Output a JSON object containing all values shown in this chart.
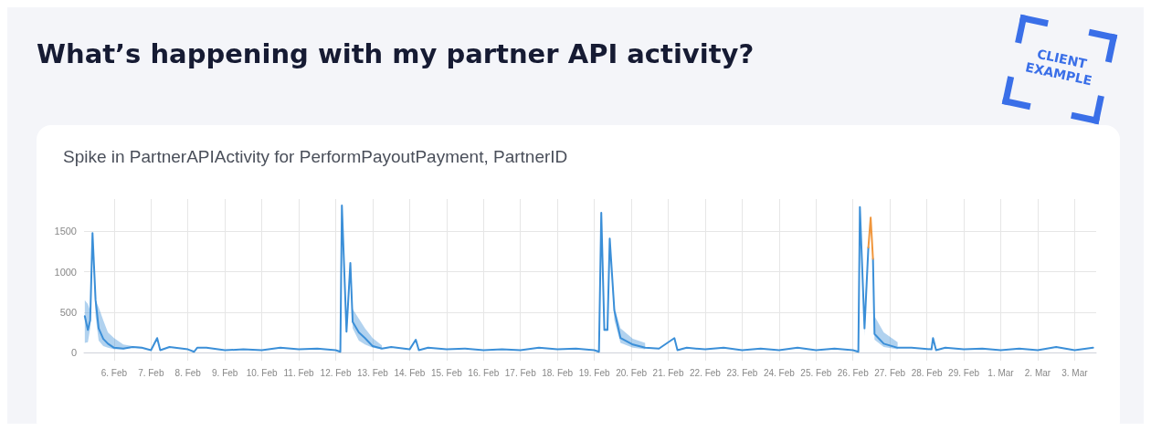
{
  "chart_data": {
    "type": "line",
    "title": "What’s happening with my partner API activity?",
    "subtitle": "Spike in PartnerAPIActivity for PerformPayoutPayment, PartnerID",
    "annotations": [
      "CLIENT EXAMPLE"
    ],
    "x": [
      "--02-05T05:00",
      "--02-05T07:00",
      "--02-05T08:30",
      "--02-05T10:00",
      "--02-05T12:00",
      "--02-05T14:00",
      "--02-05T17:00",
      "--02-05T20:00",
      "--02-06T00:00",
      "--02-06T06:00",
      "--02-06T12:00",
      "--02-06T18:00",
      "--02-07T00:00",
      "--02-07T04:00",
      "--02-07T06:00",
      "--02-07T12:00",
      "--02-08T00:00",
      "--02-08T04:00",
      "--02-08T06:00",
      "--02-08T12:00",
      "--02-09T00:00",
      "--02-09T12:00",
      "--02-10T00:00",
      "--02-10T12:00",
      "--02-11T00:00",
      "--02-11T12:00",
      "--02-12T00:00",
      "--02-12T03:00",
      "--02-12T04:00",
      "--02-12T07:00",
      "--02-12T09:30",
      "--02-12T11:00",
      "--02-12T15:00",
      "--02-12T19:00",
      "--02-13T00:00",
      "--02-13T06:00",
      "--02-13T12:00",
      "--02-14T00:00",
      "--02-14T04:00",
      "--02-14T06:00",
      "--02-14T12:00",
      "--02-15T00:00",
      "--02-15T12:00",
      "--02-16T00:00",
      "--02-16T12:00",
      "--02-17T00:00",
      "--02-17T12:00",
      "--02-18T00:00",
      "--02-18T12:00",
      "--02-19T00:00",
      "--02-19T03:00",
      "--02-19T04:30",
      "--02-19T06:30",
      "--02-19T08:30",
      "--02-19T10:00",
      "--02-19T13:00",
      "--02-19T17:00",
      "--02-20T01:00",
      "--02-20T09:00",
      "--02-20T18:00",
      "--02-21T04:00",
      "--02-21T06:00",
      "--02-21T12:00",
      "--02-22T00:00",
      "--02-22T12:00",
      "--02-23T00:00",
      "--02-23T12:00",
      "--02-24T00:00",
      "--02-24T12:00",
      "--02-25T00:00",
      "--02-25T12:00",
      "--02-26T00:00",
      "--02-26T03:30",
      "--02-26T04:30",
      "--02-26T07:30",
      "--02-26T10:00",
      "--02-26T11:30",
      "--02-26T13:00",
      "--02-26T14:00",
      "--02-26T20:00",
      "--02-27T05:00",
      "--02-27T14:00",
      "--02-28T03:00",
      "--02-28T04:00",
      "--02-28T06:00",
      "--02-28T12:00",
      "--02-29T00:00",
      "--02-29T12:00",
      "--03-01T00:00",
      "--03-01T12:00",
      "--03-02T00:00",
      "--03-02T12:00",
      "--03-03T00:00",
      "--03-03T12:00"
    ],
    "series": [
      {
        "color": "#3b8fd8",
        "values": [
          450,
          280,
          400,
          1480,
          650,
          300,
          170,
          110,
          60,
          50,
          70,
          60,
          30,
          180,
          30,
          70,
          40,
          10,
          60,
          60,
          30,
          40,
          30,
          60,
          40,
          50,
          30,
          10,
          1820,
          260,
          1110,
          380,
          250,
          180,
          80,
          50,
          70,
          40,
          160,
          30,
          60,
          40,
          50,
          30,
          40,
          30,
          60,
          40,
          50,
          30,
          10,
          1730,
          280,
          280,
          1410,
          520,
          180,
          100,
          60,
          50,
          180,
          30,
          60,
          40,
          60,
          30,
          50,
          30,
          60,
          30,
          50,
          30,
          10,
          1800,
          300,
          1300,
          null,
          1160,
          230,
          110,
          60,
          60,
          40,
          180,
          30,
          60,
          40,
          50,
          30,
          50,
          30,
          70,
          30,
          60
        ],
        "lower": [
          120,
          130,
          300,
          1450,
          450,
          150,
          80,
          60,
          40,
          40,
          60,
          50,
          null,
          null,
          null,
          null,
          null,
          null,
          null,
          null,
          null,
          null,
          null,
          null,
          null,
          null,
          null,
          null,
          null,
          260,
          1080,
          300,
          150,
          100,
          60,
          40,
          null,
          null,
          null,
          null,
          null,
          null,
          null,
          null,
          null,
          null,
          null,
          null,
          null,
          null,
          null,
          null,
          270,
          270,
          1380,
          400,
          120,
          60,
          40,
          null,
          null,
          null,
          null,
          null,
          null,
          null,
          null,
          null,
          null,
          null,
          null,
          null,
          null,
          null,
          200,
          1280,
          null,
          1140,
          160,
          70,
          40,
          null,
          null,
          null,
          null,
          null,
          null,
          null,
          null,
          null,
          null,
          null,
          null,
          null
        ],
        "upper": [
          650,
          600,
          520,
          1500,
          650,
          560,
          400,
          250,
          180,
          100,
          80,
          70,
          null,
          null,
          null,
          null,
          null,
          null,
          null,
          null,
          null,
          null,
          null,
          null,
          null,
          null,
          null,
          null,
          null,
          300,
          1130,
          540,
          420,
          300,
          180,
          90,
          null,
          null,
          null,
          null,
          null,
          null,
          null,
          null,
          null,
          null,
          null,
          null,
          null,
          null,
          null,
          null,
          300,
          300,
          1430,
          560,
          300,
          170,
          120,
          null,
          null,
          null,
          null,
          null,
          null,
          null,
          null,
          null,
          null,
          null,
          null,
          null,
          null,
          null,
          480,
          1320,
          null,
          1180,
          450,
          250,
          130,
          null,
          null,
          null,
          null,
          null,
          null,
          null,
          null,
          null,
          null,
          null,
          null,
          null
        ]
      },
      {
        "color": "#f0963c",
        "x": [
          "--02-26T10:00",
          "--02-26T11:30",
          "--02-26T13:00"
        ],
        "values": [
          1300,
          1670,
          1160
        ]
      }
    ],
    "xlim": [
      "--02-05T04:30",
      "--03-03T14:00"
    ],
    "xticks": [
      {
        "value": "--02-06",
        "label": "6. Feb"
      },
      {
        "value": "--02-07",
        "label": "7. Feb"
      },
      {
        "value": "--02-08",
        "label": "8. Feb"
      },
      {
        "value": "--02-09",
        "label": "9. Feb"
      },
      {
        "value": "--02-10",
        "label": "10. Feb"
      },
      {
        "value": "--02-11",
        "label": "11. Feb"
      },
      {
        "value": "--02-12",
        "label": "12. Feb"
      },
      {
        "value": "--02-13",
        "label": "13. Feb"
      },
      {
        "value": "--02-14",
        "label": "14. Feb"
      },
      {
        "value": "--02-15",
        "label": "15. Feb"
      },
      {
        "value": "--02-16",
        "label": "16. Feb"
      },
      {
        "value": "--02-17",
        "label": "17. Feb"
      },
      {
        "value": "--02-18",
        "label": "18. Feb"
      },
      {
        "value": "--02-19",
        "label": "19. Feb"
      },
      {
        "value": "--02-20",
        "label": "20. Feb"
      },
      {
        "value": "--02-21",
        "label": "21. Feb"
      },
      {
        "value": "--02-22",
        "label": "22. Feb"
      },
      {
        "value": "--02-23",
        "label": "23. Feb"
      },
      {
        "value": "--02-24",
        "label": "24. Feb"
      },
      {
        "value": "--02-25",
        "label": "25. Feb"
      },
      {
        "value": "--02-26",
        "label": "26. Feb"
      },
      {
        "value": "--02-27",
        "label": "27. Feb"
      },
      {
        "value": "--02-28",
        "label": "28. Feb"
      },
      {
        "value": "--02-29",
        "label": "29. Feb"
      },
      {
        "value": "--03-01",
        "label": "1. Mar"
      },
      {
        "value": "--03-02",
        "label": "2. Mar"
      },
      {
        "value": "--03-03",
        "label": "3. Mar"
      }
    ],
    "ylim": [
      -100,
      1900
    ],
    "yticks": [
      0,
      500,
      1000,
      1500
    ],
    "grid": true
  }
}
